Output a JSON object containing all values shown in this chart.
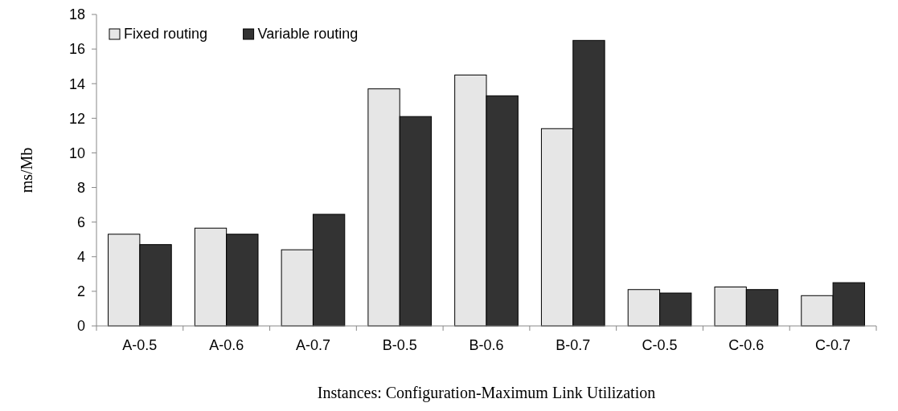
{
  "chart_data": {
    "type": "bar",
    "xlabel": "Instances: Configuration-Maximum Link Utilization",
    "ylabel": "ms/Mb",
    "categories": [
      "A-0.5",
      "A-0.6",
      "A-0.7",
      "B-0.5",
      "B-0.6",
      "B-0.7",
      "C-0.5",
      "C-0.6",
      "C-0.7"
    ],
    "series": [
      {
        "name": "Fixed routing",
        "color": "#e6e6e6",
        "values": [
          5.3,
          5.65,
          4.4,
          13.7,
          14.5,
          11.4,
          2.1,
          2.25,
          1.75
        ]
      },
      {
        "name": "Variable routing",
        "color": "#333333",
        "values": [
          4.7,
          5.3,
          6.45,
          12.1,
          13.3,
          16.5,
          1.9,
          2.1,
          2.5
        ]
      }
    ],
    "ylim": [
      0,
      18
    ],
    "yticks": [
      0,
      2,
      4,
      6,
      8,
      10,
      12,
      14,
      16,
      18
    ],
    "grid": false,
    "legend": "top left"
  }
}
